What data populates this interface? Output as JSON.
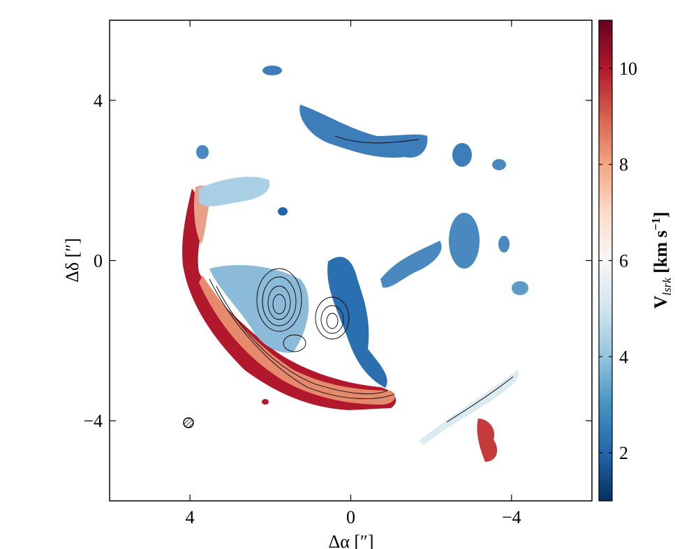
{
  "chart_data": {
    "type": "image",
    "xlabel": "Δα [″]",
    "ylabel": "Δδ [″]",
    "xlim": [
      6,
      -6
    ],
    "ylim": [
      -6,
      6
    ],
    "xticks": [
      4,
      0,
      {
        "value": -4,
        "label": "−4"
      }
    ],
    "yticks": [
      {
        "value": -4,
        "label": "−4"
      },
      0,
      4
    ],
    "colorbar": {
      "label": {
        "main": "V",
        "sub": "lsrk",
        "units": " [km s",
        "sup": "−1",
        "close": "]"
      },
      "clim": [
        1,
        11
      ],
      "ticks": [
        2,
        4,
        6,
        8,
        10
      ],
      "colormap": [
        "#053061",
        "#2166ac",
        "#4393c3",
        "#92c5de",
        "#d1e5f0",
        "#f7f7f7",
        "#fddbc7",
        "#f4a582",
        "#d6604d",
        "#b2182b",
        "#67001f"
      ]
    }
  }
}
